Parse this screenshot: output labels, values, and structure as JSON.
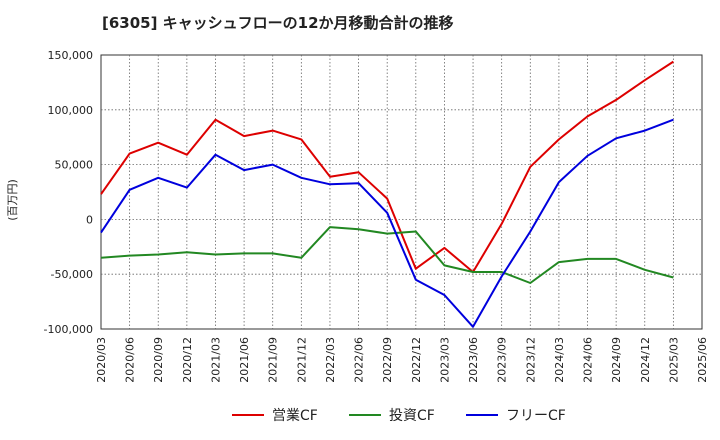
{
  "chart_data": {
    "type": "line",
    "title": "[6305]  キャッシュフローの12か月移動合計の推移",
    "ylabel": "(百万円)",
    "xlabel": "",
    "ylim": [
      -100000,
      150000
    ],
    "yticks": [
      150000,
      100000,
      50000,
      0,
      -50000,
      -100000
    ],
    "ytick_labels": [
      "150,000",
      "100,000",
      "50,000",
      "0",
      "-50,000",
      "-100,000"
    ],
    "grid": true,
    "legend_position": "bottom",
    "categories": [
      "2020/03",
      "2020/06",
      "2020/09",
      "2020/12",
      "2021/03",
      "2021/06",
      "2021/09",
      "2021/12",
      "2022/03",
      "2022/06",
      "2022/09",
      "2022/12",
      "2023/03",
      "2023/06",
      "2023/09",
      "2023/12",
      "2024/03",
      "2024/06",
      "2024/09",
      "2024/12",
      "2025/03",
      "2025/06"
    ],
    "series": [
      {
        "name": "営業CF",
        "color": "#dd0000",
        "values": [
          23000,
          60000,
          70000,
          59000,
          91000,
          76000,
          81000,
          73000,
          39000,
          43000,
          19000,
          -45000,
          -26000,
          -48000,
          -4000,
          48000,
          73000,
          94000,
          109000,
          127000,
          144000,
          null
        ]
      },
      {
        "name": "投資CF",
        "color": "#228822",
        "values": [
          -35000,
          -33000,
          -32000,
          -30000,
          -32000,
          -31000,
          -31000,
          -35000,
          -7000,
          -9000,
          -13000,
          -11000,
          -42000,
          -48000,
          -48000,
          -58000,
          -39000,
          -36000,
          -36000,
          -46000,
          -53000,
          null
        ]
      },
      {
        "name": "フリーCF",
        "color": "#0000dd",
        "values": [
          -12000,
          27000,
          38000,
          29000,
          59000,
          45000,
          50000,
          38000,
          32000,
          33000,
          6000,
          -55000,
          -69000,
          -98000,
          -52000,
          -11000,
          34000,
          58000,
          74000,
          81000,
          91000,
          null
        ]
      }
    ]
  }
}
